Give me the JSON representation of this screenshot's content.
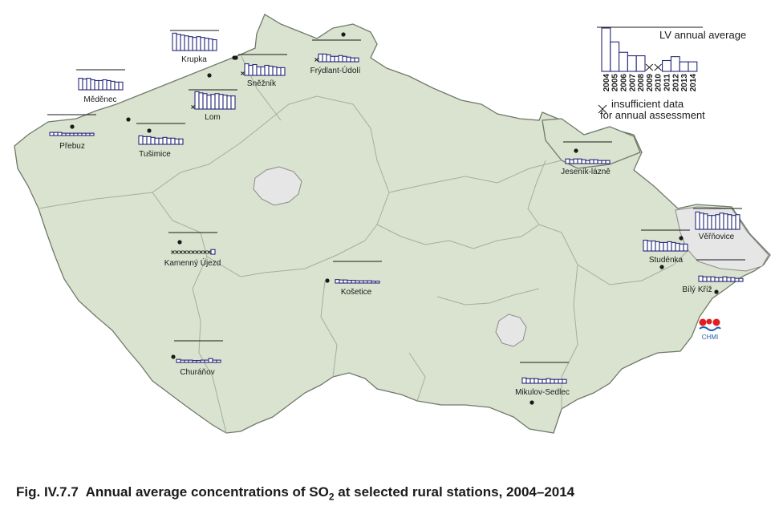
{
  "caption": {
    "fig_label": "Fig. IV.7.7",
    "title_before": "Annual average concentrations of SO",
    "title_sub": "2",
    "title_after": " at selected rural stations,",
    "period": "2004–2014"
  },
  "legend": {
    "lv_text": "LV annual average",
    "insufficient_line1": "insufficient data",
    "insufficient_line2": "for annual assessment",
    "years": [
      "2004",
      "2005",
      "2006",
      "2007",
      "2008",
      "2009",
      "2010",
      "2011",
      "2012",
      "2013",
      "2014"
    ],
    "example_values": [
      1.0,
      0.68,
      0.44,
      0.36,
      0.36,
      null,
      null,
      0.25,
      0.34,
      0.22,
      0.22
    ]
  },
  "logo_text": "CHMI",
  "colors": {
    "land": "#d9e3cf",
    "bars": "#27297a",
    "city": "#e6e6e6"
  },
  "stations": [
    {
      "name": "Krupka",
      "values": [
        0.45,
        0.42,
        0.4,
        0.38,
        0.36,
        0.34,
        0.36,
        0.34,
        0.32,
        0.3,
        0.28
      ]
    },
    {
      "name": "Měděnec",
      "values": [
        0.3,
        0.28,
        0.3,
        0.26,
        0.24,
        0.24,
        0.26,
        0.24,
        0.22,
        0.2,
        0.2
      ]
    },
    {
      "name": "Sněžník",
      "values": [
        null,
        0.3,
        0.26,
        0.28,
        0.22,
        0.22,
        0.26,
        0.24,
        0.22,
        0.2,
        0.2
      ]
    },
    {
      "name": "Frýdlant-Údolí",
      "values": [
        null,
        0.2,
        0.2,
        0.18,
        0.14,
        0.14,
        0.16,
        0.14,
        0.12,
        0.1,
        0.1
      ]
    },
    {
      "name": "Lom",
      "values": [
        null,
        0.45,
        0.42,
        0.4,
        0.36,
        0.38,
        0.4,
        0.38,
        0.36,
        0.34,
        0.34
      ]
    },
    {
      "name": "Přebuz",
      "values": [
        0.08,
        0.08,
        0.08,
        0.06,
        0.06,
        0.06,
        0.06,
        0.06,
        0.06,
        0.06,
        0.06
      ]
    },
    {
      "name": "Tušimice",
      "values": [
        0.22,
        0.2,
        0.2,
        0.18,
        0.16,
        0.16,
        0.18,
        0.16,
        0.16,
        0.14,
        0.14
      ]
    },
    {
      "name": "Kamenný Újezd",
      "values": [
        null,
        null,
        null,
        null,
        null,
        null,
        null,
        null,
        null,
        null,
        0.12
      ]
    },
    {
      "name": "Košetice",
      "values": [
        0.09,
        0.08,
        0.08,
        0.07,
        0.07,
        0.06,
        0.06,
        0.06,
        0.06,
        0.05,
        0.05
      ]
    },
    {
      "name": "Churáňov",
      "values": [
        0.08,
        0.06,
        0.06,
        0.06,
        0.05,
        0.05,
        0.06,
        0.06,
        0.1,
        0.06,
        0.06
      ]
    },
    {
      "name": "Jeseník-lázně",
      "values": [
        0.12,
        0.1,
        0.12,
        0.12,
        0.1,
        0.08,
        0.1,
        0.1,
        0.08,
        0.08,
        0.08
      ]
    },
    {
      "name": "Věřňovice",
      "values": [
        0.45,
        0.42,
        0.4,
        0.36,
        0.36,
        0.38,
        0.42,
        0.4,
        0.38,
        0.36,
        0.38
      ]
    },
    {
      "name": "Studénka",
      "values": [
        0.28,
        0.26,
        0.26,
        0.24,
        0.22,
        0.22,
        0.24,
        0.22,
        0.2,
        0.18,
        0.18
      ]
    },
    {
      "name": "Bílý Kříž",
      "values": [
        0.14,
        0.12,
        0.12,
        0.12,
        0.1,
        0.1,
        0.12,
        0.1,
        0.1,
        0.08,
        0.08
      ]
    },
    {
      "name": "Mikulov-Sedlec",
      "values": [
        0.14,
        0.12,
        0.12,
        0.12,
        0.1,
        0.1,
        0.12,
        0.1,
        0.1,
        0.1,
        0.1
      ]
    }
  ]
}
